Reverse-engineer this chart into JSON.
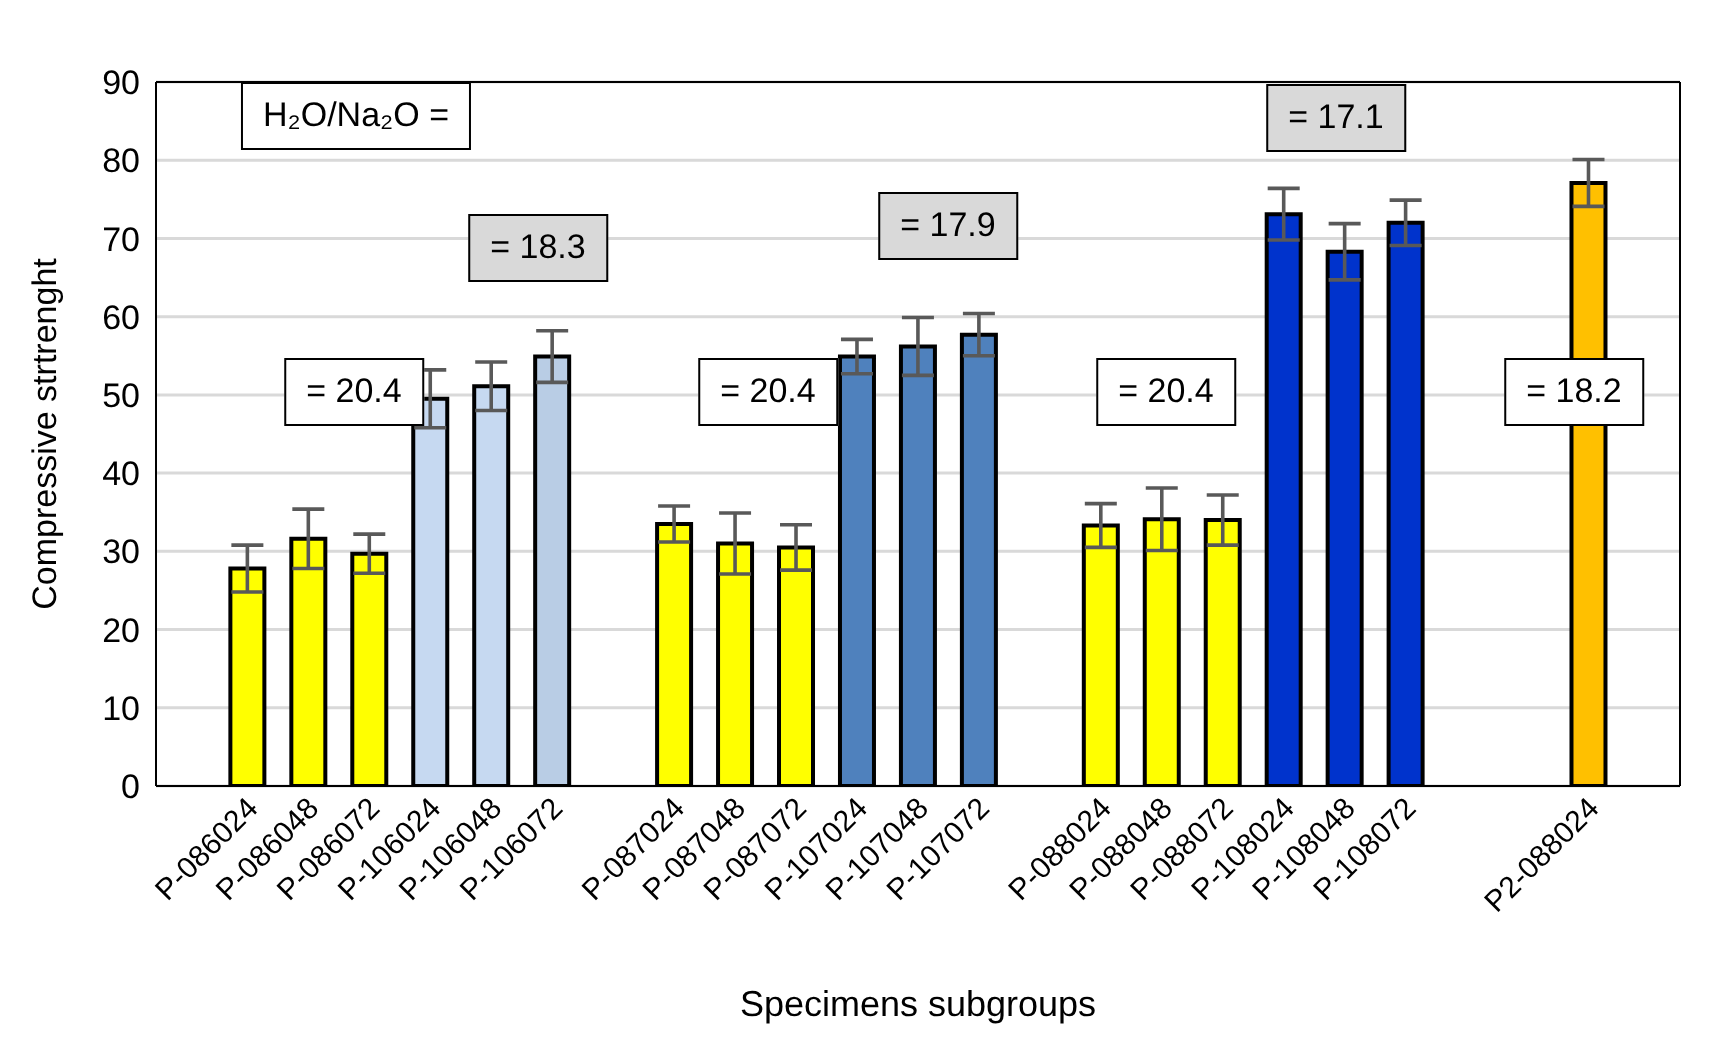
{
  "chart_data": {
    "type": "bar",
    "xlabel": "Specimens subgroups",
    "ylabel": "Compressive strtrenght",
    "categories": [
      null,
      "P-086024",
      "P-086048",
      "P-086072",
      "P-106024",
      "P-106048",
      "P-106072",
      null,
      "P-087024",
      "P-087048",
      "P-087072",
      "P-107024",
      "P-107048",
      "P-107072",
      null,
      "P-088024",
      "P-088048",
      "P-088072",
      "P-108024",
      "P-108048",
      "P-108072",
      null,
      null,
      "P2-088024",
      null
    ],
    "values": [
      null,
      27.8,
      31.6,
      29.7,
      49.5,
      51.1,
      54.9,
      null,
      33.5,
      31.0,
      30.5,
      54.9,
      56.2,
      57.7,
      null,
      33.3,
      34.1,
      34.0,
      73.1,
      68.3,
      72.0,
      null,
      null,
      77.1,
      null
    ],
    "errors": [
      null,
      3.0,
      3.8,
      2.5,
      3.7,
      3.1,
      3.3,
      null,
      2.3,
      3.9,
      2.9,
      2.2,
      3.7,
      2.7,
      null,
      2.8,
      4.0,
      3.2,
      3.3,
      3.6,
      2.9,
      null,
      null,
      3.0,
      null
    ],
    "colors": [
      null,
      "#ffff00",
      "#ffff00",
      "#ffff00",
      "#c6d9f1",
      "#c6d9f1",
      "#b9cde5",
      null,
      "#ffff00",
      "#ffff00",
      "#ffff00",
      "#4f81bd",
      "#4f81bd",
      "#4f81bd",
      null,
      "#ffff00",
      "#ffff00",
      "#ffff00",
      "#0033cc",
      "#0033cc",
      "#0033cc",
      null,
      null,
      "#ffc000",
      null
    ],
    "ylim": [
      0,
      90
    ],
    "yticks": [
      0,
      10,
      20,
      30,
      40,
      50,
      60,
      70,
      80,
      90
    ],
    "grid": "y",
    "legend": false,
    "annotations": [
      "H₂O/Na₂O =",
      "= 20.4",
      "= 18.3",
      "= 20.4",
      "= 17.9",
      "= 20.4",
      "= 17.1",
      "= 18.2"
    ]
  }
}
